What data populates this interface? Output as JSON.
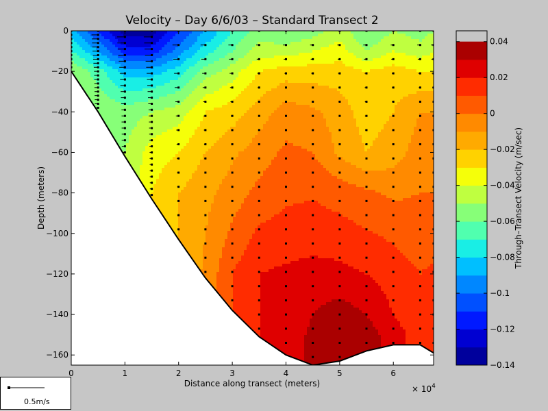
{
  "chart_data": {
    "type": "heatmap",
    "title": "Velocity – Day 6/6/03 – Standard Transect 2",
    "xlabel": "Distance along transect (meters)",
    "ylabel": "Depth (meters)",
    "x_exponent_label": "× 10",
    "x_exponent_power": "4",
    "xlim": [
      0,
      6.75
    ],
    "ylim": [
      -165,
      0
    ],
    "xticks": [
      0,
      1,
      2,
      3,
      4,
      5,
      6
    ],
    "yticks": [
      0,
      -20,
      -40,
      -60,
      -80,
      -100,
      -120,
      -140,
      -160
    ],
    "colorbar": {
      "label": "Through–Transect Velocity (m/sec)",
      "range": [
        -0.14,
        0.046
      ],
      "ticks": [
        0.04,
        0.02,
        0,
        -0.02,
        -0.04,
        -0.06,
        -0.08,
        -0.1,
        -0.12,
        -0.14
      ],
      "tick_labels": [
        "0.04",
        "0.02",
        "0",
        "−0.02",
        "−0.04",
        "−0.06",
        "−0.08",
        "−0.1",
        "−0.12",
        "−0.14"
      ],
      "levels": [
        -0.14,
        -0.13,
        -0.12,
        -0.11,
        -0.1,
        -0.09,
        -0.08,
        -0.07,
        -0.06,
        -0.05,
        -0.04,
        -0.03,
        -0.02,
        -0.01,
        0,
        0.01,
        0.02,
        0.03,
        0.04
      ],
      "colors": [
        "#00009c",
        "#0000d2",
        "#0019ff",
        "#0050ff",
        "#0087ff",
        "#00bfff",
        "#19eee5",
        "#50ffaf",
        "#87ff78",
        "#bfff40",
        "#f5ff09",
        "#ffd200",
        "#ffaa00",
        "#ff8a00",
        "#ff5a00",
        "#ff2c00",
        "#df0000",
        "#aa0000"
      ]
    },
    "bottom_profile": [
      [
        0,
        -20
      ],
      [
        0.5,
        -40
      ],
      [
        1,
        -62
      ],
      [
        1.5,
        -83
      ],
      [
        2,
        -103
      ],
      [
        2.5,
        -122
      ],
      [
        3,
        -138
      ],
      [
        3.5,
        -151
      ],
      [
        4,
        -160
      ],
      [
        4.5,
        -165
      ],
      [
        5,
        -163
      ],
      [
        5.5,
        -158
      ],
      [
        6,
        -155
      ],
      [
        6.5,
        -155
      ],
      [
        6.75,
        -159
      ]
    ],
    "stations_x": [
      0,
      0.5,
      1,
      1.5,
      2,
      2.5,
      3,
      3.5,
      4,
      4.5,
      5,
      5.5,
      6,
      6.5,
      6.75
    ],
    "velocity_grid": {
      "x": [
        0,
        0.5,
        1,
        1.5,
        2,
        2.5,
        3,
        3.5,
        4,
        4.5,
        5,
        5.5,
        6,
        6.5,
        6.75
      ],
      "depths": [
        0,
        10,
        20,
        40,
        60,
        80,
        100,
        120,
        140,
        150,
        160,
        165
      ],
      "values": [
        [
          -0.085,
          -0.11,
          -0.135,
          -0.135,
          -0.11,
          -0.09,
          -0.07,
          -0.055,
          -0.06,
          -0.055,
          -0.045,
          -0.06,
          -0.05,
          -0.055,
          -0.05
        ],
        [
          -0.07,
          -0.09,
          -0.115,
          -0.115,
          -0.095,
          -0.075,
          -0.06,
          -0.045,
          -0.045,
          -0.04,
          -0.035,
          -0.05,
          -0.04,
          -0.045,
          -0.04
        ],
        [
          -0.05,
          -0.065,
          -0.085,
          -0.085,
          -0.075,
          -0.055,
          -0.045,
          -0.03,
          -0.025,
          -0.025,
          -0.025,
          -0.03,
          -0.025,
          -0.03,
          -0.03
        ],
        [
          -0.05,
          -0.05,
          -0.055,
          -0.05,
          -0.045,
          -0.03,
          -0.025,
          -0.015,
          -0.005,
          -0.008,
          -0.015,
          -0.025,
          -0.02,
          -0.01,
          -0.01
        ],
        [
          -0.05,
          -0.05,
          -0.05,
          -0.035,
          -0.03,
          -0.02,
          -0.012,
          -0.005,
          0.002,
          0,
          -0.012,
          -0.02,
          -0.015,
          -0.005,
          -0.005
        ],
        [
          -0.05,
          -0.05,
          -0.05,
          -0.03,
          -0.02,
          -0.013,
          -0.005,
          0.003,
          0.008,
          0.009,
          0.006,
          0.002,
          -0.002,
          0,
          0
        ],
        [
          -0.05,
          -0.05,
          -0.05,
          -0.03,
          -0.02,
          -0.01,
          0.002,
          0.012,
          0.014,
          0.015,
          0.014,
          0.011,
          0.008,
          0.005,
          0.005
        ],
        [
          -0.05,
          -0.05,
          -0.05,
          -0.03,
          -0.02,
          -0.008,
          0.01,
          0.02,
          0.022,
          0.024,
          0.023,
          0.02,
          0.015,
          0.01,
          0.012
        ],
        [
          -0.05,
          -0.05,
          -0.05,
          -0.03,
          -0.02,
          -0.008,
          0.01,
          0.02,
          0.024,
          0.03,
          0.035,
          0.03,
          0.02,
          0.012,
          0.012
        ],
        [
          -0.05,
          -0.05,
          -0.05,
          -0.03,
          -0.02,
          -0.008,
          0.01,
          0.02,
          0.025,
          0.032,
          0.04,
          0.035,
          0.025,
          0.015,
          0.015
        ],
        [
          -0.05,
          -0.05,
          -0.05,
          -0.03,
          -0.02,
          -0.008,
          0.01,
          0.02,
          0.025,
          0.032,
          0.042,
          0.036,
          0.025,
          0.015,
          0.015
        ],
        [
          -0.05,
          -0.05,
          -0.05,
          -0.03,
          -0.02,
          -0.008,
          0.01,
          0.02,
          0.025,
          0.032,
          0.042,
          0.036,
          0.025,
          0.015,
          0.015
        ]
      ]
    }
  },
  "legend_box": {
    "scale_label": "0.5m/s"
  }
}
